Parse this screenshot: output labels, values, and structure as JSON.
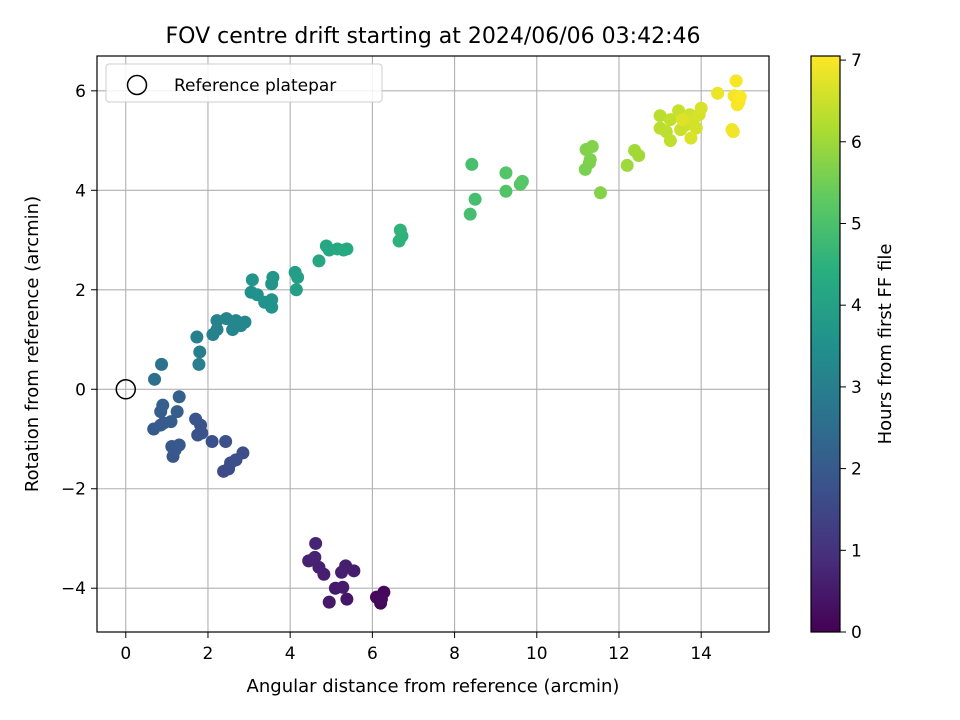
{
  "chart_data": {
    "type": "scatter",
    "title": "FOV centre drift starting at 2024/06/06 03:42:46",
    "xlabel": "Angular distance from reference (arcmin)",
    "ylabel": "Rotation from reference (arcmin)",
    "colorbar_label": "Hours from first FF file",
    "xlim": [
      -0.7,
      15.65
    ],
    "ylim": [
      -4.88,
      6.7
    ],
    "color_lim": [
      0,
      7.05
    ],
    "x_ticks": [
      0,
      2,
      4,
      6,
      8,
      10,
      12,
      14
    ],
    "y_ticks": [
      -4,
      -2,
      0,
      2,
      4,
      6
    ],
    "colorbar_ticks": [
      0,
      1,
      2,
      3,
      4,
      5,
      6,
      7
    ],
    "x_tick_labels": [
      "0",
      "2",
      "4",
      "6",
      "8",
      "10",
      "12",
      "14"
    ],
    "y_tick_labels": [
      "−4",
      "−2",
      "0",
      "2",
      "4",
      "6"
    ],
    "colorbar_tick_labels": [
      "0",
      "1",
      "2",
      "3",
      "4",
      "5",
      "6",
      "7"
    ],
    "grid": true,
    "colormap": "viridis",
    "legend": {
      "position": "top-left",
      "entries": [
        {
          "label": "Reference platepar",
          "marker": "open-circle"
        }
      ]
    },
    "reference_point": {
      "x": 0,
      "y": 0
    },
    "points": [
      {
        "x": 6.2,
        "y": -4.3,
        "t": 0.1
      },
      {
        "x": 6.28,
        "y": -4.08,
        "t": 0.12
      },
      {
        "x": 6.1,
        "y": -4.18,
        "t": 0.15
      },
      {
        "x": 6.22,
        "y": -4.22,
        "t": 0.18
      },
      {
        "x": 5.38,
        "y": -4.22,
        "t": 0.45
      },
      {
        "x": 4.95,
        "y": -4.28,
        "t": 0.48
      },
      {
        "x": 5.1,
        "y": -4.0,
        "t": 0.5
      },
      {
        "x": 5.28,
        "y": -3.98,
        "t": 0.52
      },
      {
        "x": 5.55,
        "y": -3.65,
        "t": 0.55
      },
      {
        "x": 5.35,
        "y": -3.55,
        "t": 0.58
      },
      {
        "x": 5.25,
        "y": -3.68,
        "t": 0.6
      },
      {
        "x": 4.82,
        "y": -3.72,
        "t": 0.62
      },
      {
        "x": 4.7,
        "y": -3.58,
        "t": 0.65
      },
      {
        "x": 4.45,
        "y": -3.45,
        "t": 0.68
      },
      {
        "x": 4.6,
        "y": -3.38,
        "t": 0.7
      },
      {
        "x": 4.62,
        "y": -3.1,
        "t": 0.72
      },
      {
        "x": 2.38,
        "y": -1.65,
        "t": 1.6
      },
      {
        "x": 2.5,
        "y": -1.6,
        "t": 1.62
      },
      {
        "x": 2.55,
        "y": -1.48,
        "t": 1.65
      },
      {
        "x": 2.68,
        "y": -1.42,
        "t": 1.68
      },
      {
        "x": 2.85,
        "y": -1.28,
        "t": 1.7
      },
      {
        "x": 2.43,
        "y": -1.05,
        "t": 1.72
      },
      {
        "x": 2.1,
        "y": -1.05,
        "t": 1.75
      },
      {
        "x": 1.75,
        "y": -0.92,
        "t": 1.78
      },
      {
        "x": 1.85,
        "y": -0.88,
        "t": 1.8
      },
      {
        "x": 1.82,
        "y": -0.72,
        "t": 1.82
      },
      {
        "x": 1.7,
        "y": -0.6,
        "t": 1.85
      },
      {
        "x": 1.15,
        "y": -1.35,
        "t": 1.88
      },
      {
        "x": 1.12,
        "y": -1.15,
        "t": 1.9
      },
      {
        "x": 1.2,
        "y": -1.22,
        "t": 1.92
      },
      {
        "x": 1.3,
        "y": -1.12,
        "t": 1.95
      },
      {
        "x": 0.68,
        "y": -0.8,
        "t": 1.98
      },
      {
        "x": 0.85,
        "y": -0.72,
        "t": 2.0
      },
      {
        "x": 0.92,
        "y": -0.68,
        "t": 2.02
      },
      {
        "x": 1.1,
        "y": -0.65,
        "t": 2.05
      },
      {
        "x": 1.25,
        "y": -0.45,
        "t": 2.08
      },
      {
        "x": 0.85,
        "y": -0.45,
        "t": 2.1
      },
      {
        "x": 0.9,
        "y": -0.32,
        "t": 2.12
      },
      {
        "x": 1.3,
        "y": -0.15,
        "t": 2.15
      },
      {
        "x": 0.7,
        "y": 0.2,
        "t": 2.6
      },
      {
        "x": 0.87,
        "y": 0.5,
        "t": 2.62
      },
      {
        "x": 1.78,
        "y": 0.5,
        "t": 3.0
      },
      {
        "x": 1.8,
        "y": 0.75,
        "t": 3.02
      },
      {
        "x": 1.73,
        "y": 1.05,
        "t": 3.05
      },
      {
        "x": 2.12,
        "y": 1.1,
        "t": 3.08
      },
      {
        "x": 2.22,
        "y": 1.2,
        "t": 3.1
      },
      {
        "x": 2.22,
        "y": 1.38,
        "t": 3.12
      },
      {
        "x": 2.45,
        "y": 1.42,
        "t": 3.15
      },
      {
        "x": 2.6,
        "y": 1.2,
        "t": 3.18
      },
      {
        "x": 2.68,
        "y": 1.38,
        "t": 3.2
      },
      {
        "x": 2.8,
        "y": 1.28,
        "t": 3.22
      },
      {
        "x": 2.9,
        "y": 1.35,
        "t": 3.25
      },
      {
        "x": 3.05,
        "y": 1.95,
        "t": 3.5
      },
      {
        "x": 3.2,
        "y": 1.9,
        "t": 3.52
      },
      {
        "x": 3.38,
        "y": 1.75,
        "t": 3.55
      },
      {
        "x": 3.55,
        "y": 1.65,
        "t": 3.58
      },
      {
        "x": 3.55,
        "y": 1.8,
        "t": 3.6
      },
      {
        "x": 3.08,
        "y": 2.2,
        "t": 3.62
      },
      {
        "x": 3.55,
        "y": 2.12,
        "t": 3.65
      },
      {
        "x": 3.58,
        "y": 2.25,
        "t": 3.68
      },
      {
        "x": 4.12,
        "y": 2.35,
        "t": 3.9
      },
      {
        "x": 4.18,
        "y": 2.25,
        "t": 3.92
      },
      {
        "x": 4.15,
        "y": 2.0,
        "t": 3.95
      },
      {
        "x": 4.7,
        "y": 2.58,
        "t": 4.15
      },
      {
        "x": 4.88,
        "y": 2.88,
        "t": 4.18
      },
      {
        "x": 4.95,
        "y": 2.8,
        "t": 4.2
      },
      {
        "x": 5.15,
        "y": 2.82,
        "t": 4.22
      },
      {
        "x": 5.3,
        "y": 2.8,
        "t": 4.25
      },
      {
        "x": 5.38,
        "y": 2.82,
        "t": 4.28
      },
      {
        "x": 6.65,
        "y": 2.98,
        "t": 4.5
      },
      {
        "x": 6.72,
        "y": 3.08,
        "t": 4.52
      },
      {
        "x": 6.68,
        "y": 3.2,
        "t": 4.55
      },
      {
        "x": 8.38,
        "y": 3.52,
        "t": 4.9
      },
      {
        "x": 8.5,
        "y": 3.82,
        "t": 4.92
      },
      {
        "x": 8.42,
        "y": 4.52,
        "t": 4.95
      },
      {
        "x": 9.25,
        "y": 3.98,
        "t": 5.1
      },
      {
        "x": 9.25,
        "y": 4.35,
        "t": 5.12
      },
      {
        "x": 9.6,
        "y": 4.12,
        "t": 5.15
      },
      {
        "x": 9.65,
        "y": 4.18,
        "t": 5.18
      },
      {
        "x": 11.18,
        "y": 4.42,
        "t": 5.6
      },
      {
        "x": 11.28,
        "y": 4.55,
        "t": 5.62
      },
      {
        "x": 11.3,
        "y": 4.62,
        "t": 5.65
      },
      {
        "x": 11.2,
        "y": 4.82,
        "t": 5.68
      },
      {
        "x": 11.35,
        "y": 4.88,
        "t": 5.7
      },
      {
        "x": 11.55,
        "y": 3.95,
        "t": 5.72
      },
      {
        "x": 12.2,
        "y": 4.5,
        "t": 6.0
      },
      {
        "x": 12.38,
        "y": 4.8,
        "t": 6.02
      },
      {
        "x": 12.48,
        "y": 4.7,
        "t": 6.05
      },
      {
        "x": 13.0,
        "y": 5.5,
        "t": 6.3
      },
      {
        "x": 13.0,
        "y": 5.25,
        "t": 6.32
      },
      {
        "x": 13.15,
        "y": 5.18,
        "t": 6.35
      },
      {
        "x": 13.25,
        "y": 5.0,
        "t": 6.38
      },
      {
        "x": 13.25,
        "y": 5.42,
        "t": 6.4
      },
      {
        "x": 13.45,
        "y": 5.6,
        "t": 6.45
      },
      {
        "x": 13.5,
        "y": 5.22,
        "t": 6.48
      },
      {
        "x": 13.6,
        "y": 5.3,
        "t": 6.5
      },
      {
        "x": 13.72,
        "y": 5.52,
        "t": 6.55
      },
      {
        "x": 13.8,
        "y": 5.38,
        "t": 6.58
      },
      {
        "x": 13.88,
        "y": 5.25,
        "t": 6.6
      },
      {
        "x": 13.95,
        "y": 5.52,
        "t": 6.62
      },
      {
        "x": 14.0,
        "y": 5.65,
        "t": 6.65
      },
      {
        "x": 13.75,
        "y": 5.05,
        "t": 6.68
      },
      {
        "x": 13.55,
        "y": 5.42,
        "t": 6.7
      },
      {
        "x": 14.4,
        "y": 5.95,
        "t": 6.85
      },
      {
        "x": 14.75,
        "y": 5.22,
        "t": 6.9
      },
      {
        "x": 14.78,
        "y": 5.18,
        "t": 6.92
      },
      {
        "x": 14.8,
        "y": 5.9,
        "t": 6.95
      },
      {
        "x": 14.85,
        "y": 6.2,
        "t": 6.97
      },
      {
        "x": 14.88,
        "y": 5.72,
        "t": 6.98
      },
      {
        "x": 14.92,
        "y": 5.78,
        "t": 7.0
      },
      {
        "x": 14.95,
        "y": 5.88,
        "t": 7.02
      }
    ]
  }
}
